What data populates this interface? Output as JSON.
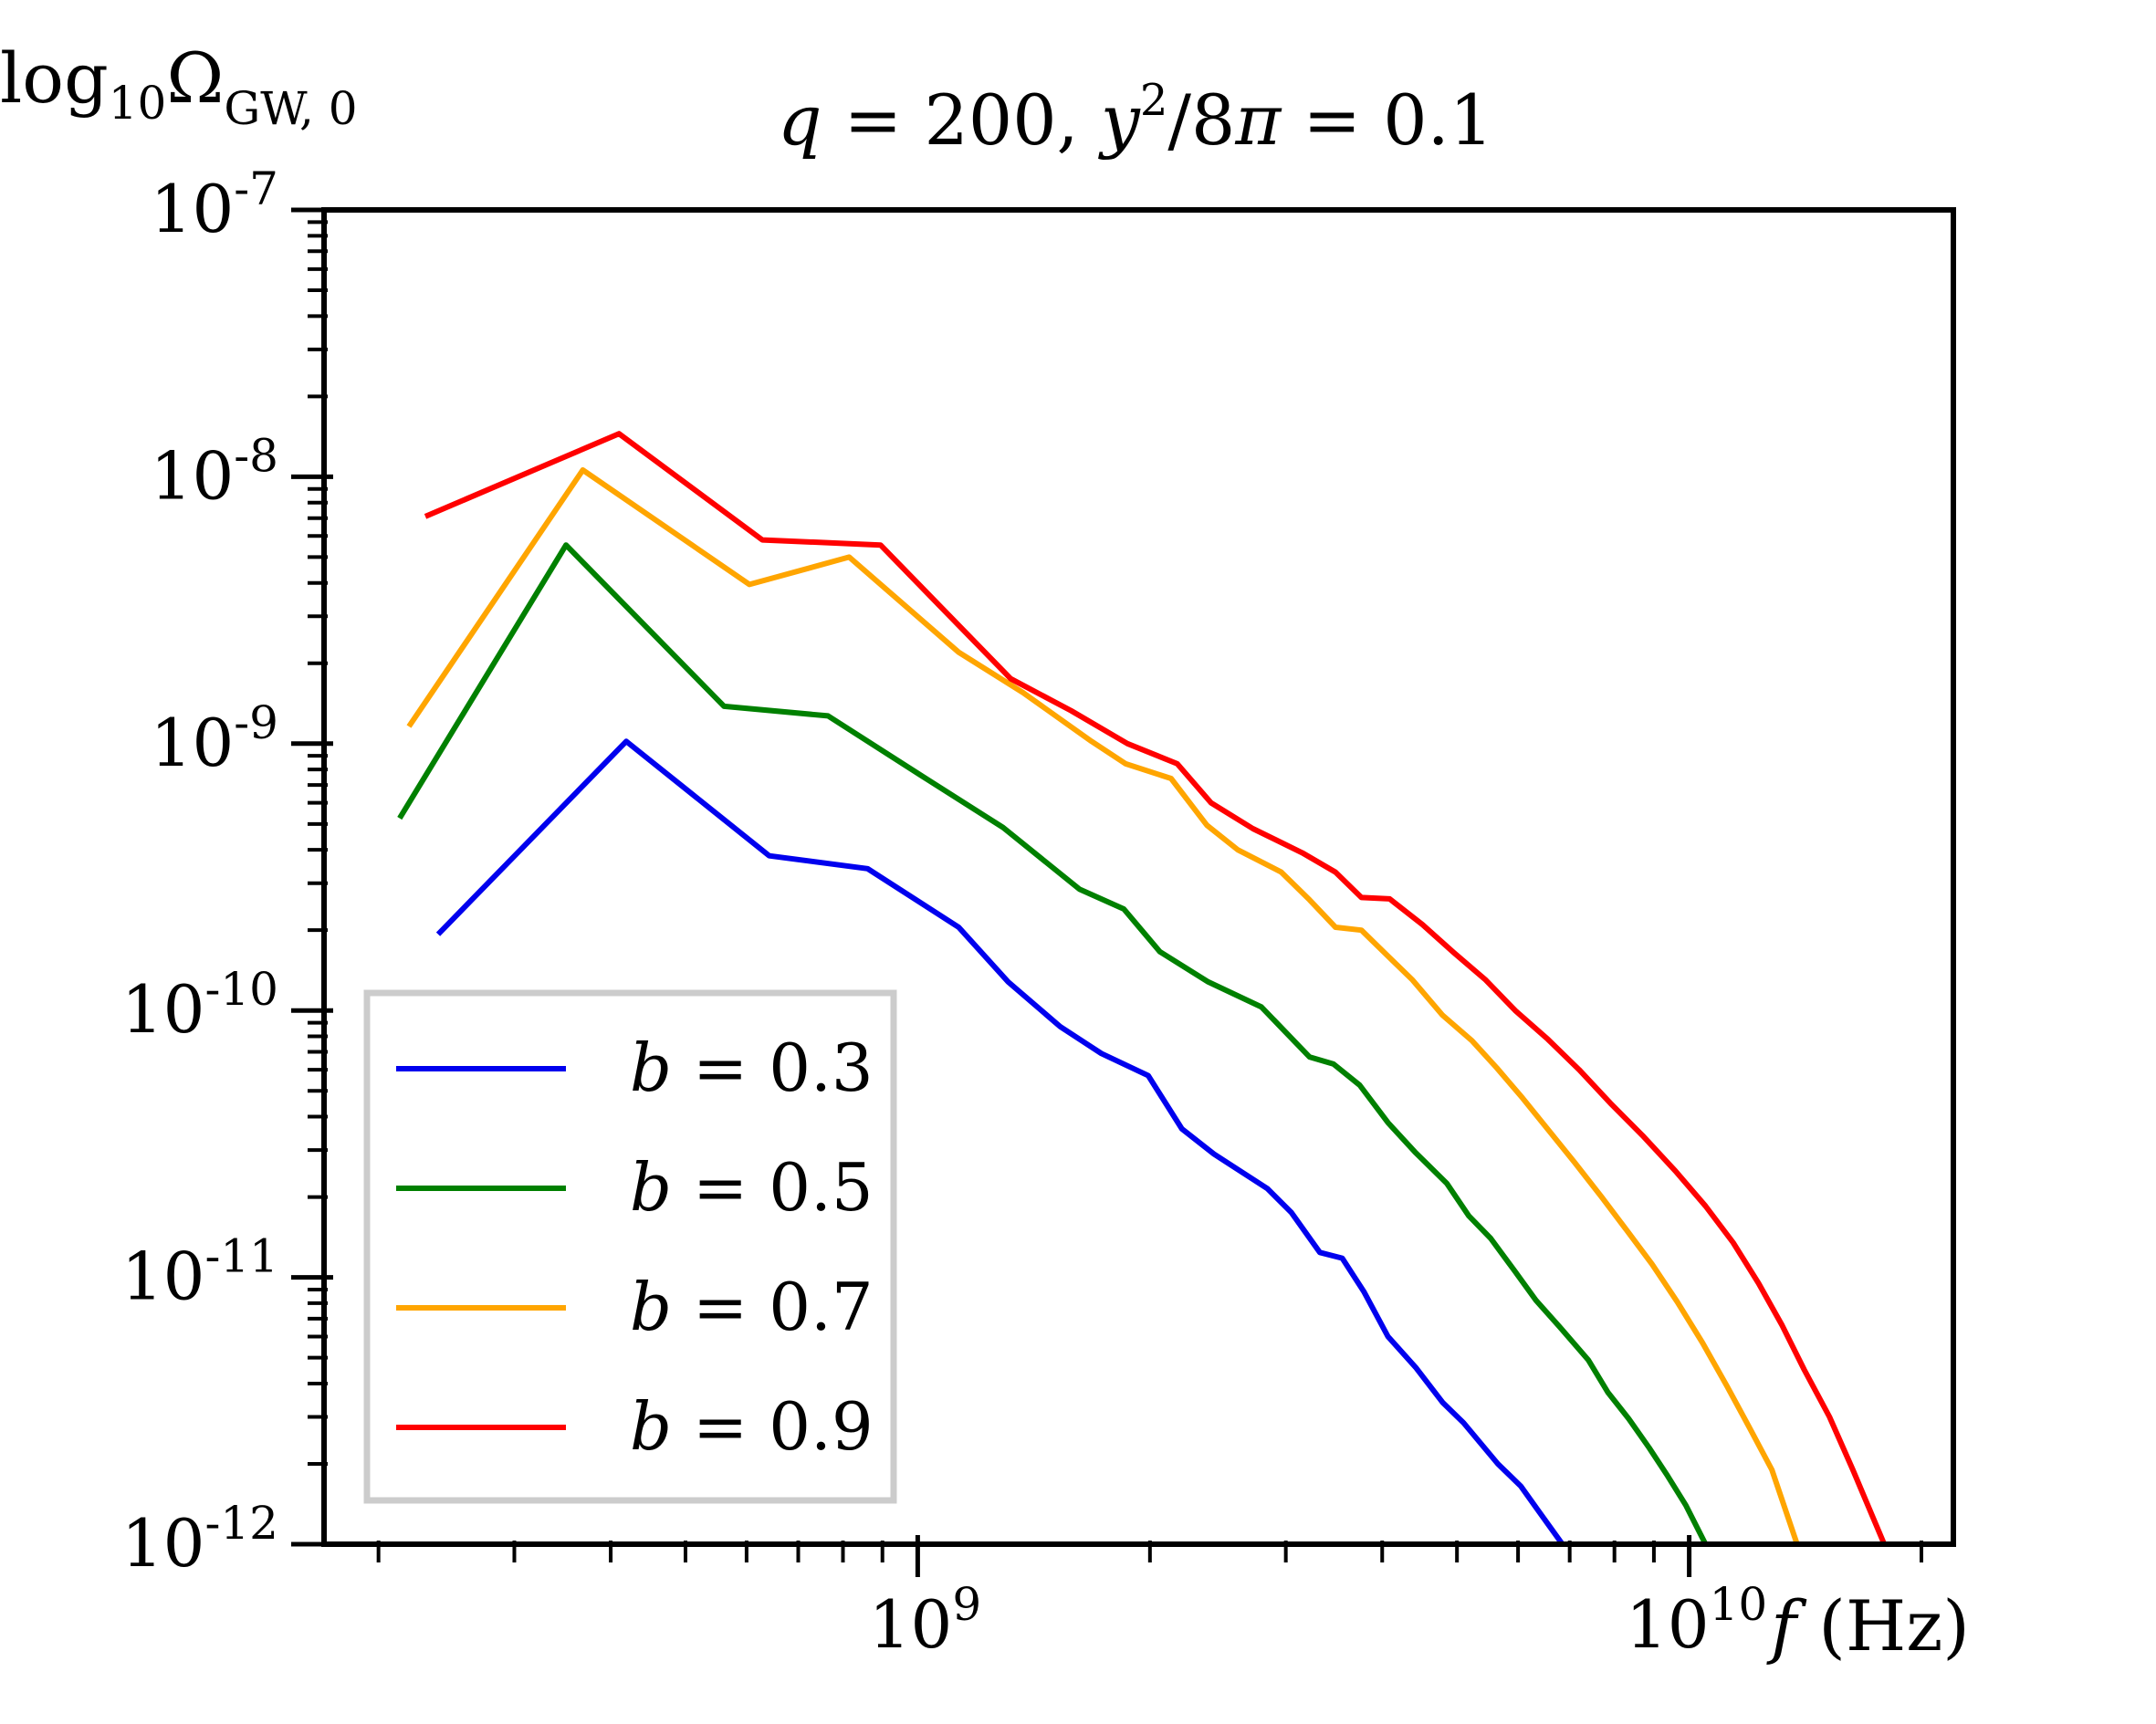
{
  "chart_data": {
    "type": "line",
    "title_parts": {
      "q_var": "q",
      "eq1": " = 200,  ",
      "y_var": "y",
      "sup": "2",
      "rest": "/8",
      "pi": "π",
      "eq2": " = 0.1"
    },
    "ylabel_parts": {
      "log": "log",
      "sub10": "10",
      "omega": "Ω",
      "sub": "GW, 0"
    },
    "xlabel_parts": {
      "f": "f",
      "unit": " (Hz)"
    },
    "x_scale": "log",
    "y_scale": "log",
    "xlim": [
      170000000,
      22000000000
    ],
    "ylim": [
      1e-12,
      1e-07
    ],
    "y_ticks": [
      {
        "value": 1e-07,
        "base": "10",
        "exp": "-7"
      },
      {
        "value": 1e-08,
        "base": "10",
        "exp": "-8"
      },
      {
        "value": 1e-09,
        "base": "10",
        "exp": "-9"
      },
      {
        "value": 1e-10,
        "base": "10",
        "exp": "-10"
      },
      {
        "value": 1e-11,
        "base": "10",
        "exp": "-11"
      },
      {
        "value": 1e-12,
        "base": "10",
        "exp": "-12"
      }
    ],
    "x_ticks": [
      {
        "value": 1000000000,
        "base": "10",
        "exp": "9"
      },
      {
        "value": 10000000000,
        "base": "10",
        "exp": "10"
      }
    ],
    "legend_position": "lower-left",
    "series": [
      {
        "label_var": "b",
        "label_rest": " = 0.3",
        "color": "#0000ee",
        "points": [
          [
            239000000,
            1.93e-10
          ],
          [
            419000000,
            1.02e-09
          ],
          [
            642000000,
            3.8e-10
          ],
          [
            861000000,
            3.4e-10
          ],
          [
            1130000000,
            2.05e-10
          ],
          [
            1310000000,
            1.28e-10
          ],
          [
            1530000000,
            8.7e-11
          ],
          [
            1730000000,
            6.9e-11
          ],
          [
            1990000000,
            5.7e-11
          ],
          [
            2200000000,
            3.6e-11
          ],
          [
            2420000000,
            2.9e-11
          ],
          [
            2840000000,
            2.15e-11
          ],
          [
            3050000000,
            1.75e-11
          ],
          [
            3320000000,
            1.24e-11
          ],
          [
            3550000000,
            1.18e-11
          ],
          [
            3790000000,
            8.8e-12
          ],
          [
            4070000000,
            6e-12
          ],
          [
            4420000000,
            4.6e-12
          ],
          [
            4790000000,
            3.4e-12
          ],
          [
            5100000000,
            2.85e-12
          ],
          [
            5650000000,
            2e-12
          ],
          [
            6050000000,
            1.65e-12
          ],
          [
            6300000000,
            1.4e-12
          ],
          [
            6850000000,
            1e-12
          ]
        ]
      },
      {
        "label_var": "b",
        "label_rest": " = 0.5",
        "color": "#008000",
        "points": [
          [
            213000000,
            5.25e-10
          ],
          [
            350000000,
            5.55e-09
          ],
          [
            561000000,
            1.38e-09
          ],
          [
            765000000,
            1.27e-09
          ],
          [
            1010000000,
            7.6e-10
          ],
          [
            1290000000,
            4.85e-10
          ],
          [
            1620000000,
            2.85e-10
          ],
          [
            1850000000,
            2.4e-10
          ],
          [
            2060000000,
            1.66e-10
          ],
          [
            2380000000,
            1.28e-10
          ],
          [
            2790000000,
            1.03e-10
          ],
          [
            3220000000,
            6.7e-11
          ],
          [
            3460000000,
            6.3e-11
          ],
          [
            3740000000,
            5.25e-11
          ],
          [
            4070000000,
            3.8e-11
          ],
          [
            4410000000,
            2.95e-11
          ],
          [
            4850000000,
            2.25e-11
          ],
          [
            5180000000,
            1.7e-11
          ],
          [
            5530000000,
            1.4e-11
          ],
          [
            5950000000,
            1.05e-11
          ],
          [
            6330000000,
            8.2e-12
          ],
          [
            6800000000,
            6.5e-12
          ],
          [
            7400000000,
            4.9e-12
          ],
          [
            7850000000,
            3.7e-12
          ],
          [
            8350000000,
            2.95e-12
          ],
          [
            8870000000,
            2.3e-12
          ],
          [
            9380000000,
            1.8e-12
          ],
          [
            9900000000,
            1.4e-12
          ],
          [
            10500000000,
            1e-12
          ]
        ]
      },
      {
        "label_var": "b",
        "label_rest": " = 0.7",
        "color": "#ffa500",
        "points": [
          [
            219000000,
            1.16e-09
          ],
          [
            368000000,
            1.06e-08
          ],
          [
            605000000,
            3.95e-09
          ],
          [
            815000000,
            5e-09
          ],
          [
            1130000000,
            2.2e-09
          ],
          [
            1370000000,
            1.55e-09
          ],
          [
            1680000000,
            1.02e-09
          ],
          [
            1860000000,
            8.4e-10
          ],
          [
            2130000000,
            7.4e-10
          ],
          [
            2370000000,
            4.95e-10
          ],
          [
            2600000000,
            4e-10
          ],
          [
            2960000000,
            3.3e-10
          ],
          [
            3220000000,
            2.6e-10
          ],
          [
            3480000000,
            2.05e-10
          ],
          [
            3760000000,
            2e-10
          ],
          [
            4050000000,
            1.62e-10
          ],
          [
            4380000000,
            1.3e-10
          ],
          [
            4790000000,
            9.6e-11
          ],
          [
            5230000000,
            7.7e-11
          ],
          [
            5630000000,
            6.1e-11
          ],
          [
            6080000000,
            4.7e-11
          ],
          [
            6550000000,
            3.6e-11
          ],
          [
            7100000000,
            2.7e-11
          ],
          [
            7700000000,
            2e-11
          ],
          [
            8300000000,
            1.5e-11
          ],
          [
            8950000000,
            1.12e-11
          ],
          [
            9650000000,
            8.1e-12
          ],
          [
            10400000000,
            5.7e-12
          ],
          [
            11200000000,
            3.9e-12
          ],
          [
            12000000000,
            2.7e-12
          ],
          [
            12800000000,
            1.9e-12
          ],
          [
            13800000000,
            1e-12
          ]
        ]
      },
      {
        "label_var": "b",
        "label_rest": " = 0.9",
        "color": "#ff0000",
        "points": [
          [
            230000000,
            7.1e-09
          ],
          [
            410000000,
            1.45e-08
          ],
          [
            629000000,
            5.8e-09
          ],
          [
            895000000,
            5.55e-09
          ],
          [
            1320000000,
            1.75e-09
          ],
          [
            1580000000,
            1.33e-09
          ],
          [
            1870000000,
            1e-09
          ],
          [
            2170000000,
            8.4e-10
          ],
          [
            2400000000,
            6e-10
          ],
          [
            2720000000,
            4.8e-10
          ],
          [
            3150000000,
            3.9e-10
          ],
          [
            3480000000,
            3.3e-10
          ],
          [
            3760000000,
            2.65e-10
          ],
          [
            4090000000,
            2.62e-10
          ],
          [
            4510000000,
            2.1e-10
          ],
          [
            4950000000,
            1.65e-10
          ],
          [
            5450000000,
            1.3e-10
          ],
          [
            5950000000,
            1e-10
          ],
          [
            6560000000,
            7.8e-11
          ],
          [
            7200000000,
            6e-11
          ],
          [
            7900000000,
            4.5e-11
          ],
          [
            8700000000,
            3.4e-11
          ],
          [
            9600000000,
            2.5e-11
          ],
          [
            10500000000,
            1.85e-11
          ],
          [
            11400000000,
            1.35e-11
          ],
          [
            12300000000,
            9.5e-12
          ],
          [
            13200000000,
            6.6e-12
          ],
          [
            14100000000,
            4.5e-12
          ],
          [
            15200000000,
            3e-12
          ],
          [
            16300000000,
            1.9e-12
          ],
          [
            17900000000,
            1e-12
          ]
        ]
      }
    ]
  }
}
